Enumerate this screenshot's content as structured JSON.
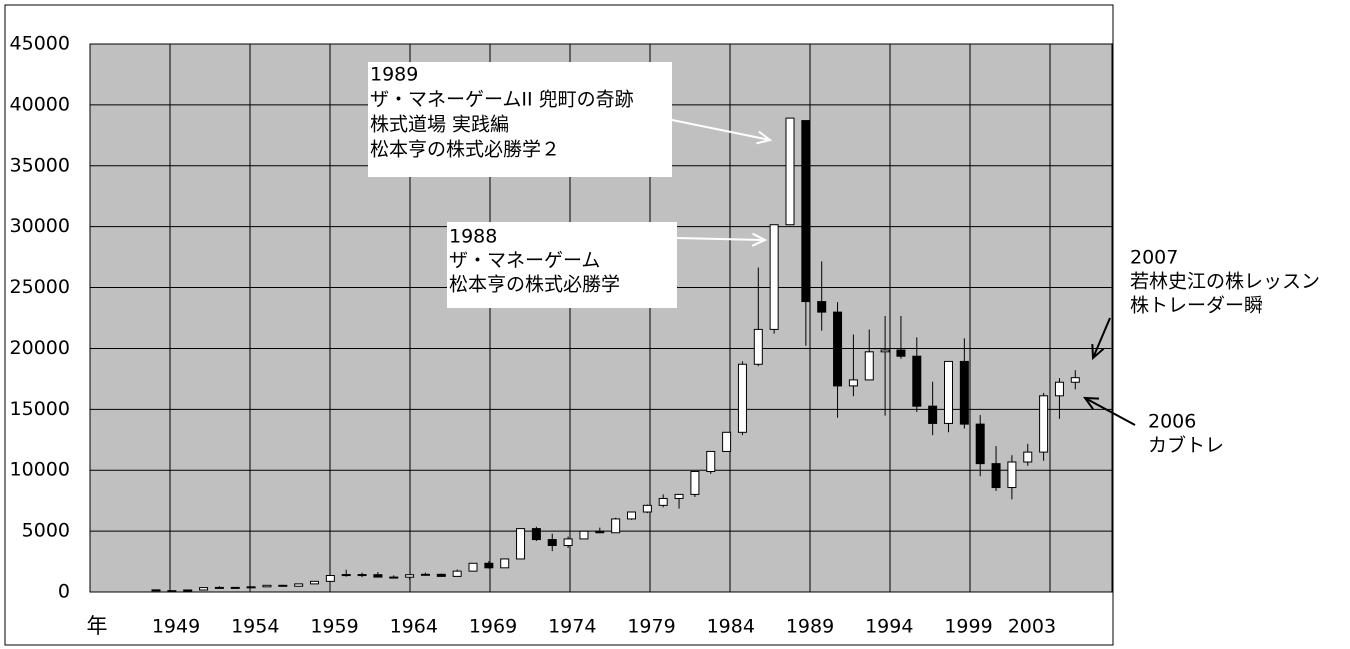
{
  "chart_data": {
    "type": "candlestick",
    "xlabel": "年",
    "categories": [
      "1949",
      null,
      null,
      null,
      null,
      "1954",
      null,
      null,
      null,
      null,
      "1959",
      null,
      null,
      null,
      null,
      "1964",
      null,
      null,
      null,
      null,
      "1969",
      null,
      null,
      null,
      null,
      "1974",
      null,
      null,
      null,
      null,
      "1979",
      null,
      null,
      null,
      null,
      "1984",
      null,
      null,
      null,
      null,
      "1989",
      null,
      null,
      null,
      null,
      "1994",
      null,
      null,
      null,
      null,
      "1999",
      null,
      null,
      null,
      "2003",
      null,
      null,
      null,
      null
    ],
    "open": [
      176,
      109,
      101,
      166,
      362,
      377,
      356,
      425,
      549,
      474,
      666,
      874,
      1356,
      1432,
      1420,
      1225,
      1216,
      1417,
      1452,
      1283,
      1714,
      2358,
      1987,
      2714,
      5207,
      4306,
      3817,
      4358,
      4990,
      4865,
      6001,
      6569,
      7116,
      7681,
      8016,
      9893,
      11542,
      13113,
      18701,
      21564,
      30159,
      38712,
      23848,
      22983,
      16924,
      17417,
      19723,
      19868,
      19361,
      15258,
      13842,
      18934,
      13785,
      10542,
      8578,
      10676,
      11488,
      16111,
      17225
    ],
    "high": [
      176,
      114,
      167,
      362,
      474,
      384,
      426,
      550,
      595,
      666,
      874,
      1356,
      1829,
      1589,
      1634,
      1369,
      1417,
      1588,
      1506,
      1851,
      2358,
      2534,
      2740,
      5207,
      5359,
      4787,
      4564,
      4990,
      5287,
      6097,
      6590,
      7188,
      8019,
      8026,
      9893,
      11577,
      13129,
      18936,
      26646,
      30159,
      38957,
      38712,
      27146,
      23801,
      21148,
      21552,
      22666,
      22666,
      20910,
      17264,
      18934,
      20833,
      14529,
      11979,
      11238,
      12163,
      16344,
      17563,
      18215
    ],
    "low": [
      85,
      85,
      98,
      164,
      295,
      315,
      350,
      423,
      471,
      474,
      660,
      868,
      1258,
      1216,
      1200,
      1202,
      1020,
      1409,
      1250,
      1266,
      1733,
      1929,
      1981,
      2712,
      4188,
      3355,
      3627,
      4347,
      4866,
      4867,
      5925,
      6475,
      6957,
      6849,
      7803,
      9703,
      11545,
      12881,
      18544,
      21217,
      30183,
      20221,
      21456,
      14309,
      16078,
      17369,
      14485,
      19161,
      14775,
      12879,
      13122,
      13423,
      9504,
      8303,
      7607,
      10365,
      10770,
      14218,
      16642
    ],
    "close": [
      109,
      101,
      166,
      362,
      377,
      356,
      425,
      549,
      474,
      666,
      874,
      1356,
      1432,
      1420,
      1225,
      1216,
      1417,
      1452,
      1283,
      1714,
      2358,
      1987,
      2714,
      5207,
      4306,
      3817,
      4358,
      4990,
      4865,
      6001,
      6569,
      7116,
      7681,
      8016,
      9893,
      11542,
      13113,
      18701,
      21564,
      30159,
      38915,
      23848,
      22983,
      16924,
      17417,
      19723,
      19868,
      19361,
      15258,
      13842,
      18934,
      13785,
      10542,
      8578,
      10676,
      11488,
      16111,
      17225,
      17600
    ],
    "up_color": "#ffffff",
    "down_color": "#000000",
    "edge_color": "#000000",
    "background": "#c0c0c0",
    "ylim": [
      0,
      45000
    ],
    "yticks": [
      0,
      5000,
      10000,
      15000,
      20000,
      25000,
      30000,
      35000,
      40000,
      45000
    ],
    "grid": true,
    "annotations": [
      {
        "lines": [
          "1989",
          "ザ・マネーゲームII  兜町の奇跡",
          "株式道場 実践編",
          "松本亨の株式必勝学２"
        ]
      },
      {
        "lines": [
          "1988",
          "ザ・マネーゲーム",
          "松本亨の株式必勝学"
        ]
      },
      {
        "lines": [
          "2007",
          "若林史江の株レッスン",
          "株トレーダー瞬"
        ]
      },
      {
        "lines": [
          "2006",
          "カブトレ"
        ]
      }
    ]
  }
}
